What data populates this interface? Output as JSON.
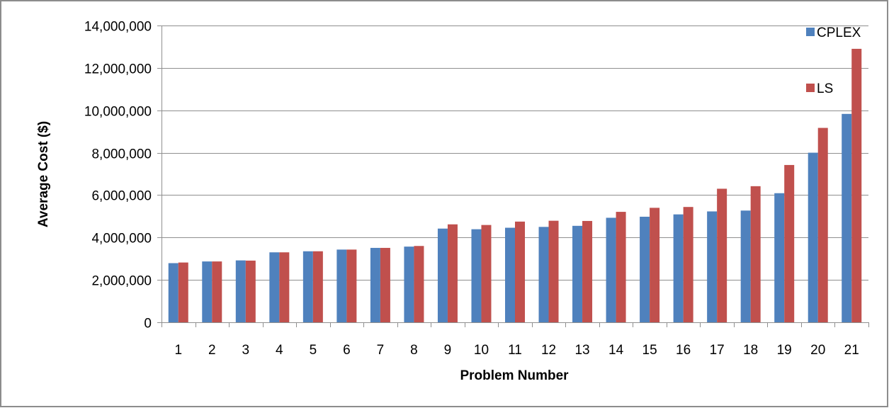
{
  "chart_data": {
    "type": "bar",
    "title": "",
    "xlabel": "Problem Number",
    "ylabel": "Average Cost ($)",
    "ylim": [
      0,
      14000000
    ],
    "yticks": [
      0,
      2000000,
      4000000,
      6000000,
      8000000,
      10000000,
      12000000,
      14000000
    ],
    "ytick_labels": [
      "0",
      "2,000,000",
      "4,000,000",
      "6,000,000",
      "8,000,000",
      "10,000,000",
      "12,000,000",
      "14,000,000"
    ],
    "grid": true,
    "legend_position": "top-right",
    "categories": [
      "1",
      "2",
      "3",
      "4",
      "5",
      "6",
      "7",
      "8",
      "9",
      "10",
      "11",
      "12",
      "13",
      "14",
      "15",
      "16",
      "17",
      "18",
      "19",
      "20",
      "21"
    ],
    "series": [
      {
        "name": "CPLEX",
        "color": "#4f81bd",
        "values": [
          2790000,
          2870000,
          2920000,
          3300000,
          3350000,
          3430000,
          3510000,
          3570000,
          4420000,
          4390000,
          4460000,
          4500000,
          4550000,
          4930000,
          4980000,
          5090000,
          5230000,
          5270000,
          6090000,
          8000000,
          9830000
        ]
      },
      {
        "name": "LS",
        "color": "#c0504d",
        "values": [
          2820000,
          2870000,
          2910000,
          3300000,
          3350000,
          3430000,
          3510000,
          3600000,
          4620000,
          4590000,
          4750000,
          4790000,
          4780000,
          5210000,
          5400000,
          5440000,
          6300000,
          6420000,
          7420000,
          9170000,
          12900000
        ]
      }
    ]
  }
}
